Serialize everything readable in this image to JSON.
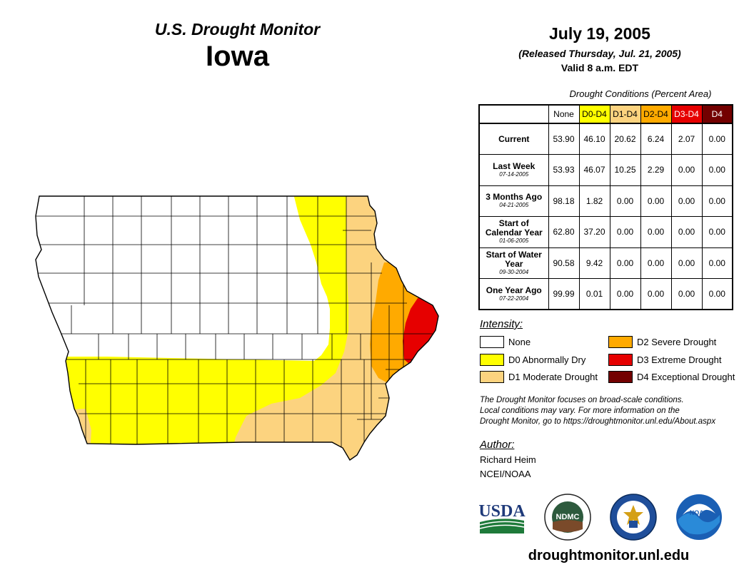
{
  "header": {
    "subtitle": "U.S. Drought Monitor",
    "state": "Iowa",
    "date": "July 19, 2005",
    "released": "(Released Thursday, Jul. 21, 2005)",
    "valid": "Valid 8 a.m. EDT"
  },
  "table": {
    "caption": "Drought Conditions (Percent Area)",
    "columns": [
      "None",
      "D0-D4",
      "D1-D4",
      "D2-D4",
      "D3-D4",
      "D4"
    ],
    "rows": [
      {
        "label": "Current",
        "date": "",
        "values": [
          "53.90",
          "46.10",
          "20.62",
          "6.24",
          "2.07",
          "0.00"
        ]
      },
      {
        "label": "Last Week",
        "date": "07-14-2005",
        "values": [
          "53.93",
          "46.07",
          "10.25",
          "2.29",
          "0.00",
          "0.00"
        ]
      },
      {
        "label": "3 Months Ago",
        "date": "04-21-2005",
        "values": [
          "98.18",
          "1.82",
          "0.00",
          "0.00",
          "0.00",
          "0.00"
        ]
      },
      {
        "label": "Start of Calendar Year",
        "date": "01-06-2005",
        "values": [
          "62.80",
          "37.20",
          "0.00",
          "0.00",
          "0.00",
          "0.00"
        ]
      },
      {
        "label": "Start of Water Year",
        "date": "09-30-2004",
        "values": [
          "90.58",
          "9.42",
          "0.00",
          "0.00",
          "0.00",
          "0.00"
        ]
      },
      {
        "label": "One Year Ago",
        "date": "07-22-2004",
        "values": [
          "99.99",
          "0.01",
          "0.00",
          "0.00",
          "0.00",
          "0.00"
        ]
      }
    ]
  },
  "legend": {
    "title": "Intensity:",
    "items": [
      {
        "label": "None",
        "color": "#ffffff"
      },
      {
        "label": "D0 Abnormally Dry",
        "color": "#ffff00"
      },
      {
        "label": "D1 Moderate Drought",
        "color": "#fcd37f"
      },
      {
        "label": "D2 Severe Drought",
        "color": "#ffaa00"
      },
      {
        "label": "D3 Extreme Drought",
        "color": "#e60000"
      },
      {
        "label": "D4 Exceptional Drought",
        "color": "#730000"
      }
    ]
  },
  "note": {
    "line1": "The Drought Monitor focuses on broad-scale conditions.",
    "line2": "Local conditions may vary. For more information on the",
    "line3": "Drought Monitor, go to https://droughtmonitor.unl.edu/About.aspx"
  },
  "author": {
    "title": "Author:",
    "name": "Richard Heim",
    "org": "NCEI/NOAA"
  },
  "logos": {
    "usda": "USDA",
    "ndmc": "NDMC",
    "noaa": "NOAA"
  },
  "footer": {
    "url": "droughtmonitor.unl.edu"
  },
  "colors": {
    "none": "#ffffff",
    "d0": "#ffff00",
    "d1": "#fcd37f",
    "d2": "#ffaa00",
    "d3": "#e60000",
    "d4": "#730000"
  }
}
